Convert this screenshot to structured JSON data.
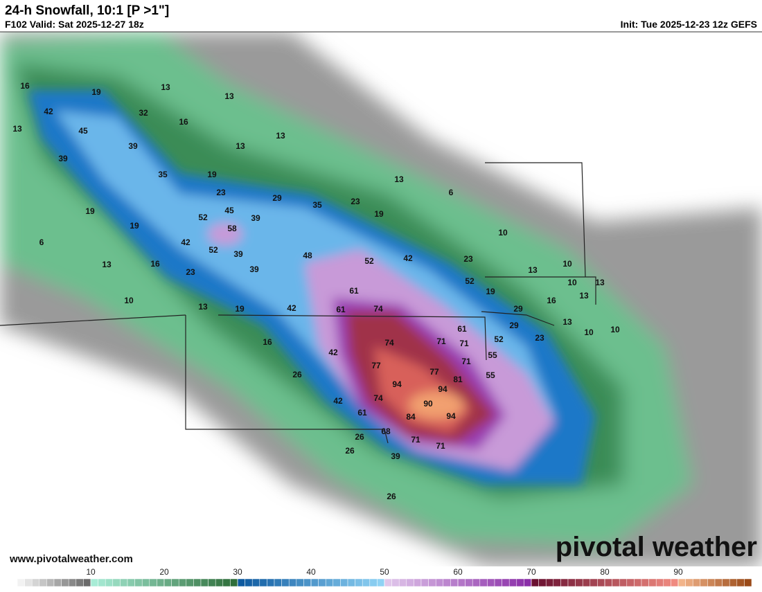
{
  "header": {
    "title": "24-h Snowfall, 10:1 [P >1\"]",
    "valid": "F102 Valid: Sat 2025-12-27 18z",
    "init": "Init: Tue 2025-12-23 12z GEFS"
  },
  "map_labels": [
    16,
    19,
    13,
    13,
    42,
    32,
    16,
    13,
    45,
    39,
    13,
    13,
    39,
    35,
    19,
    23,
    45,
    29,
    35,
    23,
    13,
    6,
    19,
    52,
    58,
    39,
    19,
    19,
    6,
    42,
    52,
    39,
    48,
    52,
    42,
    10,
    13,
    16,
    23,
    39,
    23,
    13,
    10,
    61,
    52,
    10,
    13,
    19,
    13,
    19,
    42,
    61,
    74,
    16,
    29,
    13,
    10,
    13,
    61,
    29,
    10,
    10,
    16,
    74,
    71,
    52,
    23,
    42,
    71,
    55,
    77,
    71,
    77,
    55,
    26,
    94,
    81,
    94,
    74,
    90,
    42,
    61,
    84,
    94,
    26,
    68,
    71,
    71,
    26,
    39,
    26
  ],
  "colorbar": {
    "lim": [
      0,
      100
    ],
    "ticks": [
      10,
      20,
      30,
      40,
      50,
      60,
      70,
      80,
      90
    ],
    "segments": [
      {
        "from": 0,
        "to": 10,
        "colors": [
          "#f2f2f2",
          "#6a6a6a"
        ]
      },
      {
        "from": 10,
        "to": 30,
        "colors": [
          "#a8ecd6",
          "#2f6e3a"
        ]
      },
      {
        "from": 30,
        "to": 50,
        "colors": [
          "#0e5aa0",
          "#8fd2f4"
        ]
      },
      {
        "from": 50,
        "to": 70,
        "colors": [
          "#e0c6ea",
          "#8a2ea8"
        ]
      },
      {
        "from": 70,
        "to": 90,
        "colors": [
          "#6a1030",
          "#f08a80"
        ]
      },
      {
        "from": 90,
        "to": 100,
        "colors": [
          "#f2b48a",
          "#9a4a18"
        ]
      }
    ]
  },
  "footer": {
    "website": "www.pivotalweather.com",
    "logo": "pivotal weather"
  }
}
